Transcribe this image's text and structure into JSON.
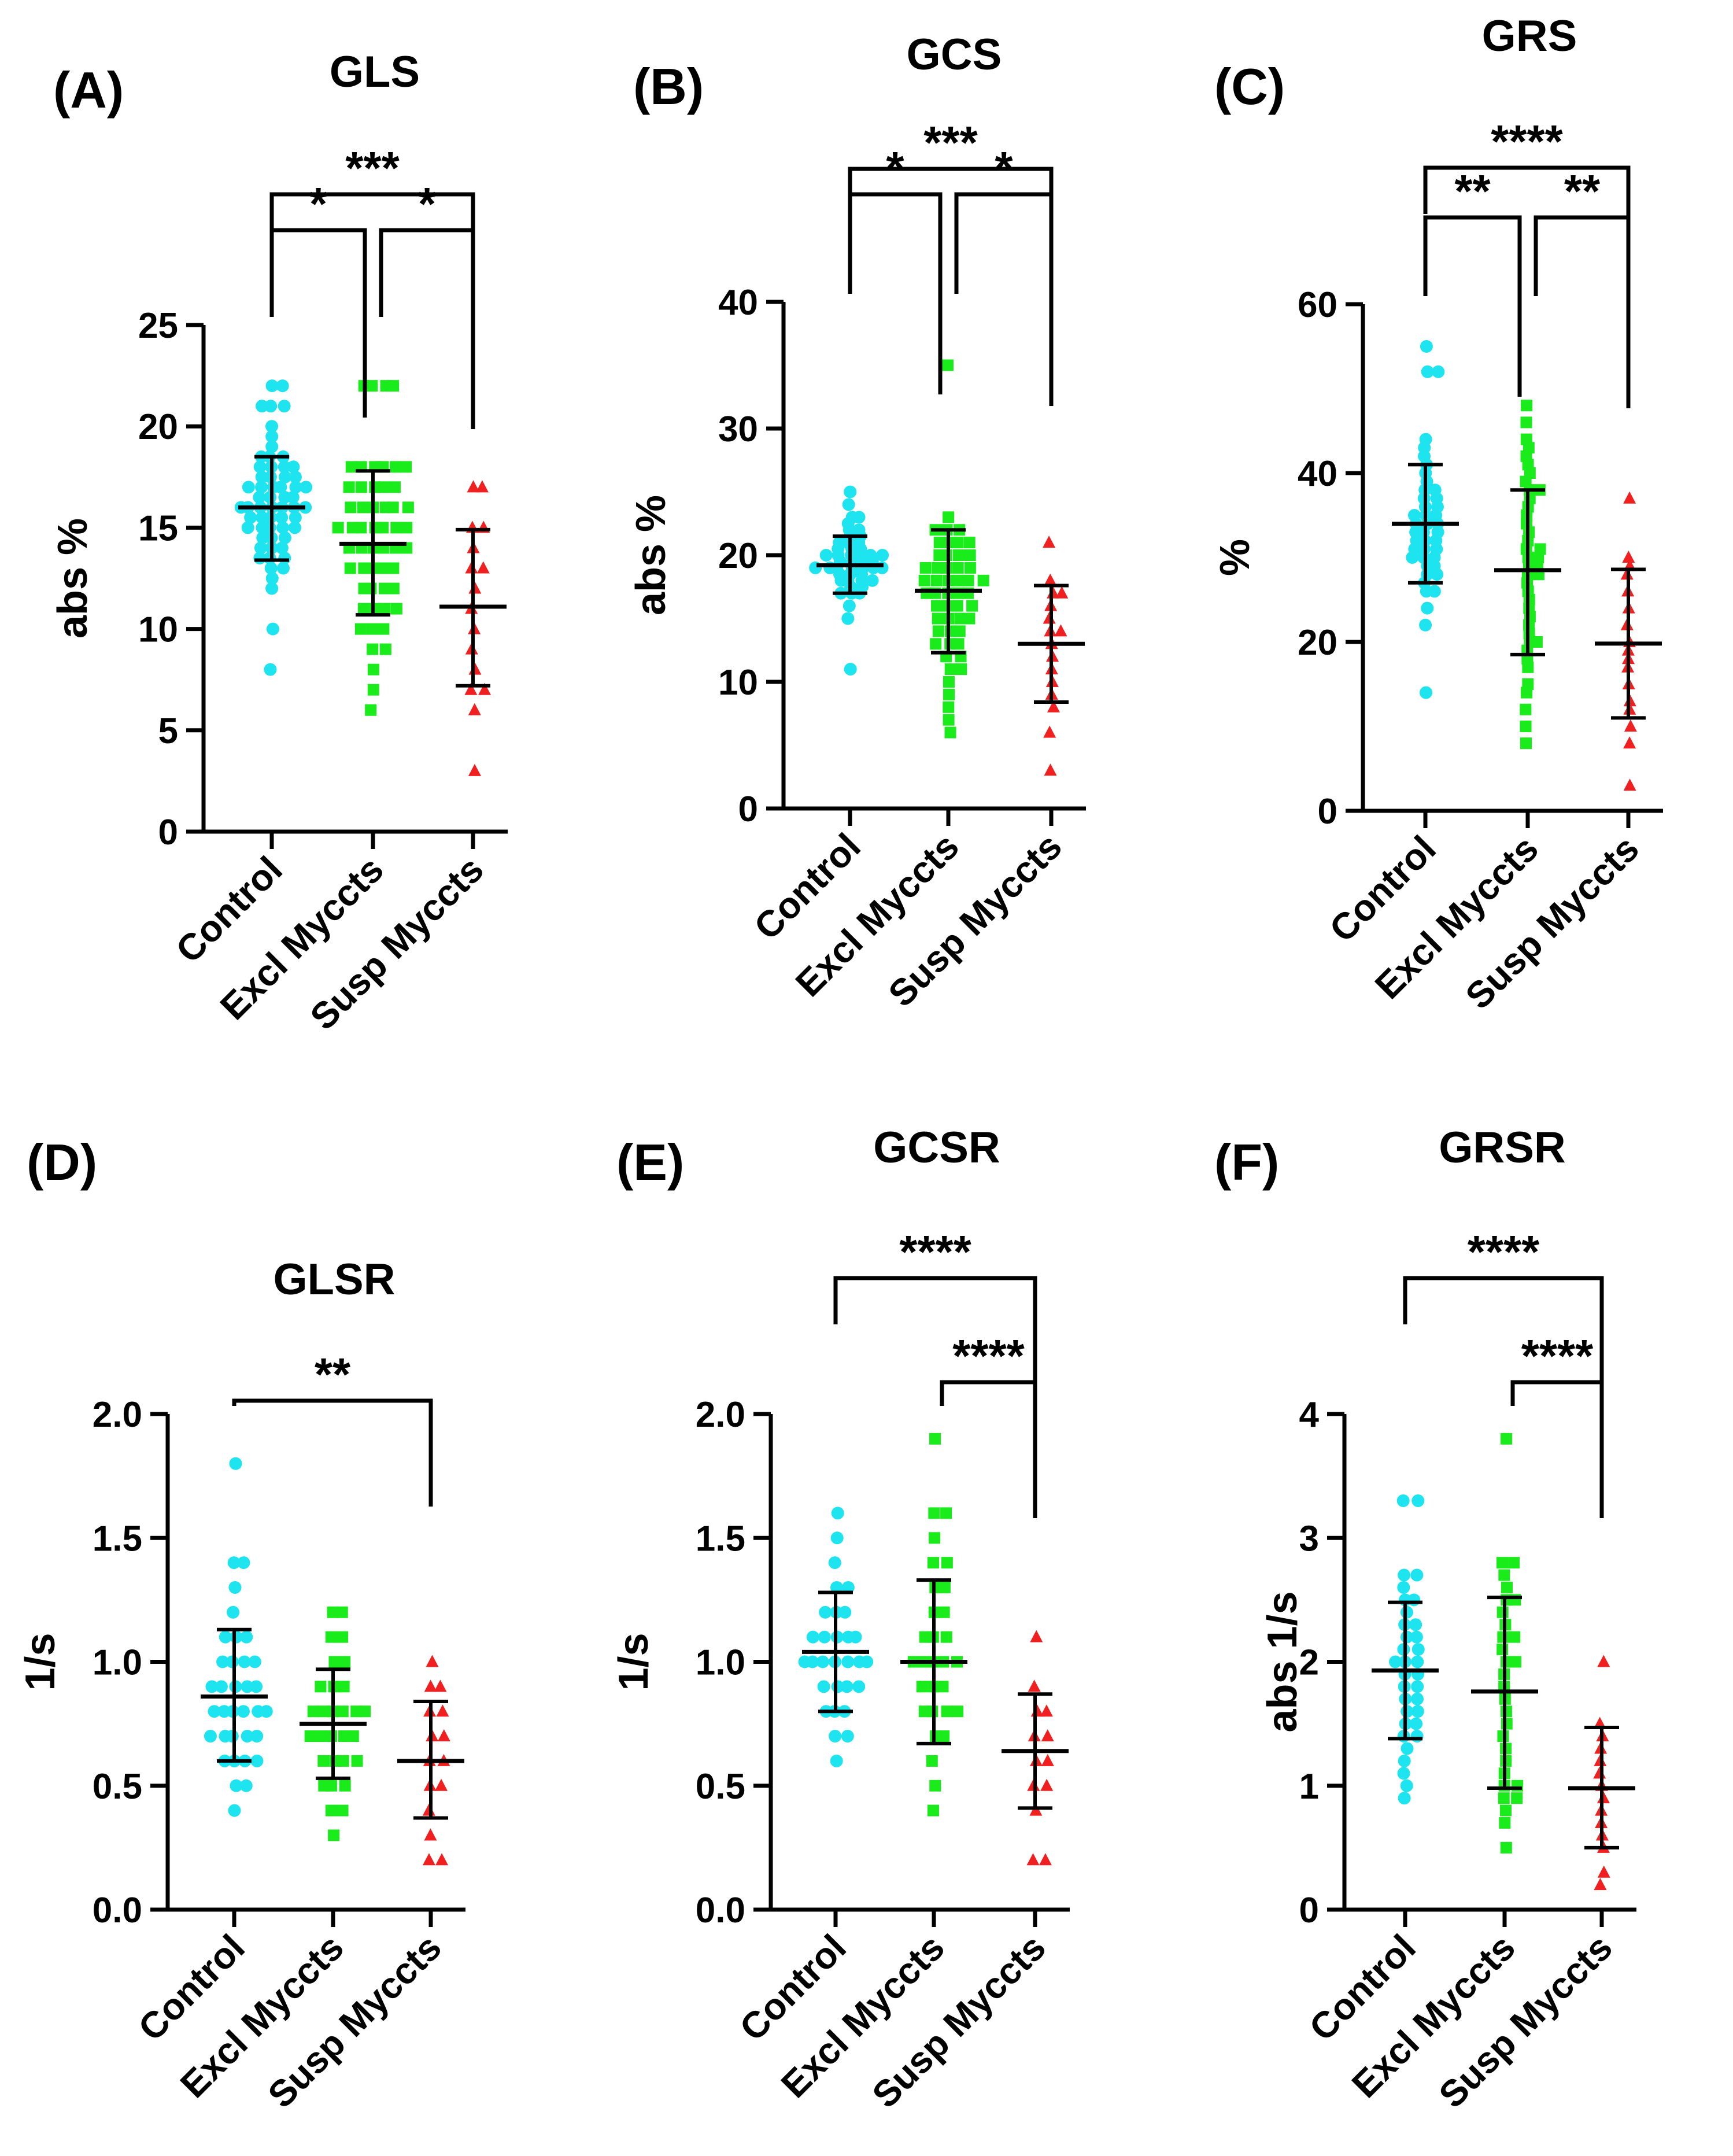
{
  "figure": {
    "group_colors": [
      "#1ee4f0",
      "#1aeb1a",
      "#f02020"
    ],
    "marker_shapes": [
      "circle",
      "square",
      "triangle"
    ]
  },
  "chart_data": [
    {
      "panel": "(A)",
      "title": "GLS",
      "type": "scatter",
      "ylabel": "abs %",
      "ylim": [
        0,
        25
      ],
      "yticks": [
        "0",
        "5",
        "10",
        "15",
        "20",
        "25"
      ],
      "categories": [
        "Control",
        "Excl Myccts",
        "Susp Myccts"
      ],
      "summary": [
        {
          "mean": 16.0,
          "sd_low": 13.4,
          "sd_high": 18.5
        },
        {
          "mean": 14.2,
          "sd_low": 10.7,
          "sd_high": 17.8
        },
        {
          "mean": 11.1,
          "sd_low": 7.2,
          "sd_high": 14.9
        }
      ],
      "series": [
        {
          "name": "Control",
          "values": [
            8,
            10,
            22,
            22,
            21,
            21,
            21,
            20,
            19.5,
            19,
            18.5,
            18.5,
            18.5,
            18,
            18,
            18,
            18,
            17.5,
            17.5,
            17.5,
            17.5,
            17,
            17,
            17,
            17,
            17,
            17,
            16.5,
            16.5,
            16.5,
            16.5,
            16,
            16,
            16,
            16,
            16,
            16,
            16,
            15.5,
            15.5,
            15.5,
            15.5,
            15.5,
            15,
            15,
            15,
            15,
            15,
            14.5,
            14.5,
            14.5,
            14,
            14,
            14,
            13.5,
            13.5,
            13.5,
            13,
            13,
            12.5,
            12
          ]
        },
        {
          "name": "Excl Myccts",
          "values": [
            6,
            7,
            8,
            9,
            9,
            10,
            10,
            10,
            11,
            11,
            11,
            11,
            12,
            12,
            12,
            12,
            13,
            13,
            13,
            13,
            13,
            14,
            14,
            14,
            14,
            14,
            14,
            15,
            15,
            15,
            15,
            15,
            15,
            15,
            16,
            16,
            16,
            16,
            16,
            16,
            17,
            17,
            17,
            17,
            17,
            18,
            18,
            18,
            18,
            18,
            18,
            22,
            22,
            22,
            22
          ]
        },
        {
          "name": "Susp Myccts",
          "values": [
            3,
            6,
            7,
            7,
            8,
            9,
            10,
            11,
            12,
            13,
            13,
            14,
            15,
            15,
            17,
            17
          ]
        }
      ],
      "comparisons": [
        {
          "from": 0,
          "to": 2,
          "label": "***",
          "level": 2
        },
        {
          "from": 0,
          "to": 1,
          "label": "*",
          "level": 1
        },
        {
          "from": 1,
          "to": 2,
          "label": "*",
          "level": 1
        }
      ]
    },
    {
      "panel": "(B)",
      "title": "GCS",
      "type": "scatter",
      "ylabel": "abs %",
      "ylim": [
        0,
        40
      ],
      "yticks": [
        "0",
        "10",
        "20",
        "30",
        "40"
      ],
      "categories": [
        "Control",
        "Excl Myccts",
        "Susp Myccts"
      ],
      "summary": [
        {
          "mean": 19.2,
          "sd_low": 17.0,
          "sd_high": 21.5
        },
        {
          "mean": 17.2,
          "sd_low": 12.3,
          "sd_high": 22.0
        },
        {
          "mean": 13.0,
          "sd_low": 8.4,
          "sd_high": 17.6
        }
      ],
      "series": [
        {
          "name": "Control",
          "values": [
            11,
            15,
            16,
            17,
            17,
            17,
            17.5,
            17.5,
            18,
            18,
            18,
            18,
            18.5,
            18.5,
            18.5,
            19,
            19,
            19,
            19,
            19,
            19,
            19,
            19.5,
            19.5,
            19.5,
            19.5,
            20,
            20,
            20,
            20,
            20,
            20,
            20.5,
            20.5,
            20.5,
            21,
            21,
            21,
            21.5,
            21.5,
            22,
            22,
            22.5,
            23,
            23,
            24,
            25
          ]
        },
        {
          "name": "Excl Myccts",
          "values": [
            6,
            7,
            8,
            9,
            10,
            11,
            11,
            12,
            12,
            13,
            13,
            13,
            14,
            14,
            14,
            15,
            15,
            15,
            15,
            16,
            16,
            16,
            16,
            17,
            17,
            17,
            17,
            17,
            18,
            18,
            18,
            18,
            18,
            18,
            19,
            19,
            19,
            19,
            19,
            20,
            20,
            20,
            20,
            21,
            21,
            21,
            21,
            22,
            22,
            22,
            23,
            35
          ]
        },
        {
          "name": "Susp Myccts",
          "values": [
            3,
            6,
            8,
            9,
            10,
            11,
            12,
            13,
            14,
            14,
            15,
            16,
            17,
            17,
            18,
            21
          ]
        }
      ],
      "comparisons": [
        {
          "from": 0,
          "to": 2,
          "label": "***",
          "level": 2
        },
        {
          "from": 0,
          "to": 1,
          "label": "*",
          "level": 1
        },
        {
          "from": 1,
          "to": 2,
          "label": "*",
          "level": 1
        }
      ]
    },
    {
      "panel": "(C)",
      "title": "GRS",
      "type": "scatter",
      "ylabel": "%",
      "ylim": [
        0,
        60
      ],
      "yticks": [
        "0",
        "20",
        "40",
        "60"
      ],
      "categories": [
        "Control",
        "Excl Myccts",
        "Susp Myccts"
      ],
      "summary": [
        {
          "mean": 34.0,
          "sd_low": 27.0,
          "sd_high": 41.0
        },
        {
          "mean": 28.5,
          "sd_low": 18.5,
          "sd_high": 38.0
        },
        {
          "mean": 19.8,
          "sd_low": 11.0,
          "sd_high": 28.6
        }
      ],
      "series": [
        {
          "name": "Control",
          "values": [
            14,
            22,
            24,
            26,
            26,
            27,
            28,
            28,
            29,
            29,
            30,
            30,
            30,
            31,
            31,
            31,
            32,
            32,
            32,
            33,
            33,
            33,
            34,
            34,
            34,
            35,
            35,
            35,
            36,
            36,
            37,
            37,
            38,
            38,
            39,
            40,
            41,
            42,
            43,
            44,
            52,
            52,
            55
          ]
        },
        {
          "name": "Excl Myccts",
          "values": [
            8,
            10,
            12,
            14,
            15,
            17,
            18,
            19,
            20,
            20,
            21,
            22,
            23,
            24,
            25,
            26,
            27,
            28,
            28,
            29,
            29,
            30,
            30,
            31,
            31,
            32,
            33,
            34,
            35,
            36,
            37,
            38,
            38,
            39,
            40,
            41,
            42,
            43,
            44,
            46,
            48
          ]
        },
        {
          "name": "Susp Myccts",
          "values": [
            3,
            8,
            10,
            12,
            13,
            15,
            17,
            18,
            19,
            20,
            22,
            24,
            26,
            28,
            29,
            30,
            37
          ]
        }
      ],
      "comparisons": [
        {
          "from": 0,
          "to": 2,
          "label": "****",
          "level": 2
        },
        {
          "from": 0,
          "to": 1,
          "label": "**",
          "level": 1
        },
        {
          "from": 1,
          "to": 2,
          "label": "**",
          "level": 1
        }
      ]
    },
    {
      "panel": "(D)",
      "title": "GLSR",
      "type": "scatter",
      "ylabel": "1/s",
      "ylim": [
        0,
        2
      ],
      "yticks": [
        "0.0",
        "0.5",
        "1.0",
        "1.5",
        "2.0"
      ],
      "categories": [
        "Control",
        "Excl Myccts",
        "Susp Myccts"
      ],
      "summary": [
        {
          "mean": 0.86,
          "sd_low": 0.6,
          "sd_high": 1.13
        },
        {
          "mean": 0.75,
          "sd_low": 0.53,
          "sd_high": 0.97
        },
        {
          "mean": 0.6,
          "sd_low": 0.37,
          "sd_high": 0.84
        }
      ],
      "series": [
        {
          "name": "Control",
          "values": [
            0.4,
            0.5,
            0.5,
            0.6,
            0.6,
            0.6,
            0.6,
            0.7,
            0.7,
            0.7,
            0.7,
            0.7,
            0.8,
            0.8,
            0.8,
            0.8,
            0.8,
            0.8,
            0.9,
            0.9,
            0.9,
            0.9,
            0.9,
            1.0,
            1.0,
            1.0,
            1.0,
            1.1,
            1.1,
            1.1,
            1.2,
            1.3,
            1.4,
            1.4,
            1.8
          ]
        },
        {
          "name": "Excl Myccts",
          "values": [
            0.3,
            0.4,
            0.4,
            0.5,
            0.5,
            0.5,
            0.6,
            0.6,
            0.6,
            0.6,
            0.7,
            0.7,
            0.7,
            0.7,
            0.7,
            0.8,
            0.8,
            0.8,
            0.8,
            0.8,
            0.8,
            0.9,
            0.9,
            0.9,
            1.0,
            1.0,
            1.1,
            1.1,
            1.2,
            1.2
          ]
        },
        {
          "name": "Susp Myccts",
          "values": [
            0.2,
            0.2,
            0.3,
            0.4,
            0.5,
            0.5,
            0.6,
            0.6,
            0.7,
            0.7,
            0.8,
            0.8,
            0.9,
            0.9,
            1.0
          ]
        }
      ],
      "comparisons": [
        {
          "from": 0,
          "to": 2,
          "label": "**",
          "level": 1
        }
      ]
    },
    {
      "panel": "(E)",
      "title": "GCSR",
      "type": "scatter",
      "ylabel": "1/s",
      "ylim": [
        0,
        2
      ],
      "yticks": [
        "0.0",
        "0.5",
        "1.0",
        "1.5",
        "2.0"
      ],
      "categories": [
        "Control",
        "Excl Myccts",
        "Susp Myccts"
      ],
      "summary": [
        {
          "mean": 1.04,
          "sd_low": 0.8,
          "sd_high": 1.28
        },
        {
          "mean": 1.0,
          "sd_low": 0.67,
          "sd_high": 1.33
        },
        {
          "mean": 0.64,
          "sd_low": 0.41,
          "sd_high": 0.87
        }
      ],
      "series": [
        {
          "name": "Control",
          "values": [
            0.6,
            0.7,
            0.7,
            0.8,
            0.8,
            0.8,
            0.9,
            0.9,
            0.9,
            0.9,
            1.0,
            1.0,
            1.0,
            1.0,
            1.0,
            1.0,
            1.0,
            1.1,
            1.1,
            1.1,
            1.1,
            1.1,
            1.2,
            1.2,
            1.2,
            1.3,
            1.3,
            1.4,
            1.5,
            1.6
          ]
        },
        {
          "name": "Excl Myccts",
          "values": [
            0.4,
            0.5,
            0.6,
            0.7,
            0.7,
            0.8,
            0.8,
            0.8,
            0.8,
            0.9,
            0.9,
            0.9,
            1.0,
            1.0,
            1.0,
            1.0,
            1.0,
            1.1,
            1.1,
            1.1,
            1.2,
            1.2,
            1.3,
            1.3,
            1.4,
            1.4,
            1.5,
            1.6,
            1.6,
            1.9
          ]
        },
        {
          "name": "Susp Myccts",
          "values": [
            0.2,
            0.2,
            0.4,
            0.5,
            0.5,
            0.6,
            0.6,
            0.7,
            0.7,
            0.8,
            0.8,
            0.9,
            1.1
          ]
        }
      ],
      "comparisons": [
        {
          "from": 0,
          "to": 2,
          "label": "****",
          "level": 2
        },
        {
          "from": 1,
          "to": 2,
          "label": "****",
          "level": 1
        }
      ]
    },
    {
      "panel": "(F)",
      "title": "GRSR",
      "type": "scatter",
      "ylabel": "abs 1/s",
      "ylim": [
        0,
        4
      ],
      "yticks": [
        "0",
        "1",
        "2",
        "3",
        "4"
      ],
      "categories": [
        "Control",
        "Excl Myccts",
        "Susp Myccts"
      ],
      "summary": [
        {
          "mean": 1.93,
          "sd_low": 1.38,
          "sd_high": 2.48
        },
        {
          "mean": 1.76,
          "sd_low": 0.98,
          "sd_high": 2.52
        },
        {
          "mean": 0.98,
          "sd_low": 0.5,
          "sd_high": 1.47
        }
      ],
      "series": [
        {
          "name": "Control",
          "values": [
            0.9,
            1.0,
            1.1,
            1.2,
            1.3,
            1.4,
            1.4,
            1.5,
            1.5,
            1.6,
            1.6,
            1.7,
            1.7,
            1.8,
            1.8,
            1.9,
            1.9,
            2.0,
            2.0,
            2.0,
            2.1,
            2.1,
            2.2,
            2.2,
            2.3,
            2.3,
            2.4,
            2.5,
            2.5,
            2.6,
            2.7,
            2.7,
            3.3,
            3.3
          ]
        },
        {
          "name": "Excl Myccts",
          "values": [
            0.5,
            0.7,
            0.8,
            0.9,
            0.9,
            1.0,
            1.0,
            1.1,
            1.2,
            1.3,
            1.4,
            1.5,
            1.6,
            1.7,
            1.8,
            1.9,
            2.0,
            2.0,
            2.1,
            2.2,
            2.2,
            2.3,
            2.4,
            2.5,
            2.5,
            2.6,
            2.7,
            2.8,
            2.8,
            3.8
          ]
        },
        {
          "name": "Susp Myccts",
          "values": [
            0.2,
            0.3,
            0.5,
            0.6,
            0.7,
            0.8,
            0.9,
            1.0,
            1.1,
            1.2,
            1.3,
            1.4,
            1.5,
            2.0
          ]
        }
      ],
      "comparisons": [
        {
          "from": 0,
          "to": 2,
          "label": "****",
          "level": 2
        },
        {
          "from": 1,
          "to": 2,
          "label": "****",
          "level": 1
        }
      ]
    }
  ]
}
